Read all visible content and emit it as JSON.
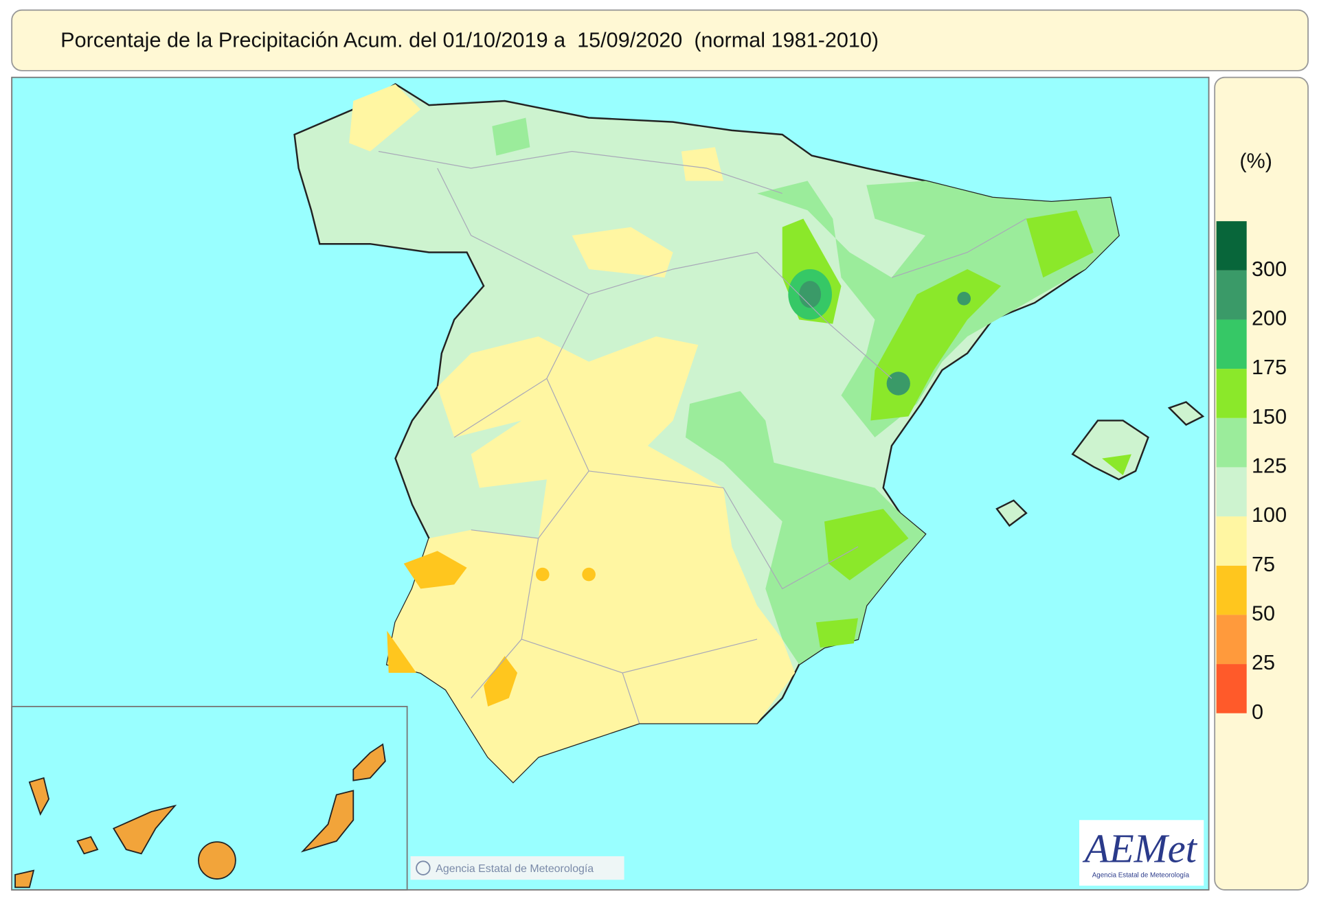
{
  "header": {
    "title": "Porcentaje de la Precipitación Acum. del 01/10/2019 a  15/09/2020  (normal 1981-2010)"
  },
  "legend": {
    "unit": "(%)",
    "ticks": [
      0,
      25,
      50,
      75,
      100,
      125,
      150,
      175,
      200,
      300
    ],
    "colors": [
      "#ff5a2a",
      "#ff9a3c",
      "#ffc61e",
      "#fff6a2",
      "#cdf3cf",
      "#9bec9b",
      "#8be82a",
      "#36c866",
      "#3a9a68",
      "#08663a"
    ]
  },
  "credit": {
    "agency": "Agencia Estatal de Meteorología",
    "logo": "AEMet",
    "logo_caption": "Agencia Estatal de Meteorología"
  }
}
